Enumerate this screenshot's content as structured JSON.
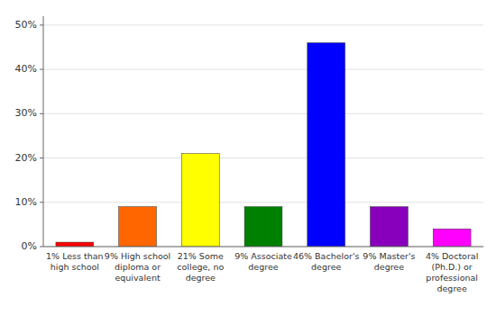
{
  "chart_data": {
    "type": "bar",
    "categories": [
      "1% Less than\nhigh school",
      "9% High school\ndiploma or\nequivalent",
      "21% Some\ncollege, no\ndegree",
      "9% Associate\ndegree",
      "46% Bachelor's\ndegree",
      "9% Master's\ndegree",
      "4% Doctoral\n(Ph.D.) or\nprofessional\ndegree"
    ],
    "values": [
      1,
      9,
      21,
      9,
      46,
      9,
      4
    ],
    "colors": [
      "#ff0000",
      "#ff6600",
      "#ffff00",
      "#008000",
      "#0000ff",
      "#8800bb",
      "#ff00ff"
    ],
    "ylim": [
      0,
      52
    ],
    "yticks": [
      {
        "value": 0,
        "label": "0%"
      },
      {
        "value": 10,
        "label": "10%"
      },
      {
        "value": 20,
        "label": "20%"
      },
      {
        "value": 30,
        "label": "30%"
      },
      {
        "value": 40,
        "label": "40%"
      },
      {
        "value": 50,
        "label": "50%"
      }
    ],
    "grid": true
  }
}
